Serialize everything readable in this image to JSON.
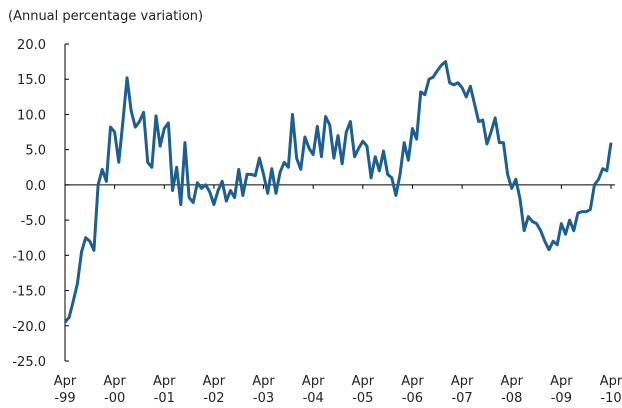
{
  "chart_data": {
    "type": "line",
    "title": "(Annual percentage variation)",
    "categories": [
      "Apr -99",
      null,
      null,
      null,
      null,
      null,
      null,
      null,
      null,
      null,
      null,
      null,
      "Apr -00",
      null,
      null,
      null,
      null,
      null,
      null,
      null,
      null,
      null,
      null,
      null,
      "Apr -01",
      null,
      null,
      null,
      null,
      null,
      null,
      null,
      null,
      null,
      null,
      null,
      "Apr -02",
      null,
      null,
      null,
      null,
      null,
      null,
      null,
      null,
      null,
      null,
      null,
      "Apr -03",
      null,
      null,
      null,
      null,
      null,
      null,
      null,
      null,
      null,
      null,
      null,
      "Apr -04",
      null,
      null,
      null,
      null,
      null,
      null,
      null,
      null,
      null,
      null,
      null,
      "Apr -05",
      null,
      null,
      null,
      null,
      null,
      null,
      null,
      null,
      null,
      null,
      null,
      "Apr -06",
      null,
      null,
      null,
      null,
      null,
      null,
      null,
      null,
      null,
      null,
      null,
      "Apr -07",
      null,
      null,
      null,
      null,
      null,
      null,
      null,
      null,
      null,
      null,
      null,
      "Apr -08",
      null,
      null,
      null,
      null,
      null,
      null,
      null,
      null,
      null,
      null,
      null,
      "Apr -09",
      null,
      null,
      null,
      null,
      null,
      null,
      null,
      null,
      null,
      null,
      null,
      "Apr -10"
    ],
    "series": [
      {
        "color": "#1f5f8f",
        "values": [
          -19.5,
          -18.8,
          -16.5,
          -14,
          -9.5,
          -7.5,
          -8,
          -9.3,
          0,
          2.2,
          0.5,
          8.2,
          7.5,
          3.2,
          9,
          15.2,
          10.5,
          8.2,
          9,
          10.3,
          3.2,
          2.5,
          9.8,
          5.5,
          8,
          8.8,
          -0.8,
          2.5,
          -2.8,
          6,
          -1.8,
          -2.5,
          0.3,
          -0.5,
          0,
          -1,
          -2.8,
          -0.8,
          0.5,
          -2.3,
          -0.8,
          -1.8,
          2.2,
          -1.5,
          1.5,
          1.5,
          1.3,
          3.8,
          1.5,
          -1.2,
          2.3,
          -1.2,
          1.8,
          3.2,
          2.5,
          10,
          3.8,
          2.2,
          6.8,
          5.2,
          4.3,
          8.3,
          4,
          9.7,
          8.5,
          3.8,
          7,
          3,
          7.5,
          9,
          4,
          5.2,
          6.2,
          5.5,
          1,
          4,
          2,
          4.8,
          1.5,
          1,
          -1.5,
          1.5,
          6,
          3.5,
          8,
          6.5,
          13.2,
          12.8,
          15,
          15.3,
          16.2,
          17,
          17.5,
          14.5,
          14.2,
          14.5,
          13.8,
          12.5,
          14,
          11.5,
          9,
          9.2,
          5.8,
          7.5,
          9.5,
          6,
          6,
          1.5,
          -0.5,
          0.8,
          -2,
          -6.5,
          -4.5,
          -5.2,
          -5.5,
          -6.5,
          -8,
          -9.2,
          -8,
          -8.5,
          -5.5,
          -7,
          -5,
          -6.5,
          -4,
          -3.8,
          -3.8,
          -3.5,
          0,
          0.8,
          2.3,
          2,
          6
        ]
      }
    ],
    "ylim": [
      -25,
      20
    ],
    "yticks": [
      {
        "value": 20,
        "label": "20.0"
      },
      {
        "value": 15,
        "label": "15.0"
      },
      {
        "value": 10,
        "label": "10.0"
      },
      {
        "value": 5,
        "label": "5.0"
      },
      {
        "value": 0,
        "label": "0.0"
      },
      {
        "value": -5,
        "label": "-5.0"
      },
      {
        "value": -10,
        "label": "-10.0"
      },
      {
        "value": -15,
        "label": "-15.0"
      },
      {
        "value": -20,
        "label": "-20.0"
      },
      {
        "value": -25,
        "label": "-25.0"
      }
    ]
  }
}
